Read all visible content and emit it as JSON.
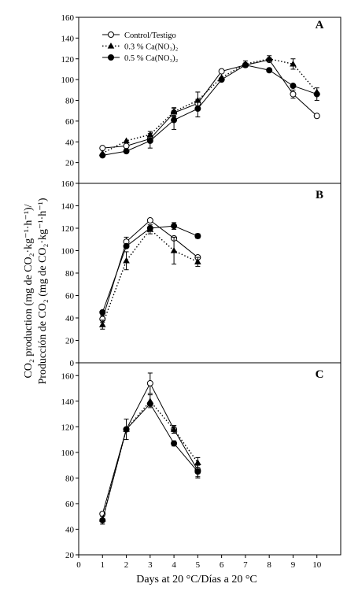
{
  "chart_data": {
    "type": "line",
    "x_axis": {
      "label": "Days at 20 °C/Días a 20 °C",
      "range": [
        0,
        11
      ],
      "ticks": [
        0,
        1,
        2,
        3,
        4,
        5,
        6,
        7,
        8,
        9,
        10
      ]
    },
    "y_axis": {
      "label_line1": "CO₂ production (mg de CO₂·kg⁻¹·h⁻¹)/",
      "label_line2": "Producción de CO₂ (mg de CO₂·kg⁻¹·h⁻¹)"
    },
    "legend": {
      "placement": "top-left of panel A",
      "entries": [
        {
          "label": "Control/Testigo",
          "marker": "open-circle",
          "line": "solid"
        },
        {
          "label": "0.3 % Ca(NO₃)₂",
          "marker": "filled-triangle",
          "line": "dotted"
        },
        {
          "label": "0.5 % Ca(NO₃)₂",
          "marker": "filled-circle",
          "line": "solid"
        }
      ]
    },
    "panels": [
      {
        "tag": "A",
        "ylim": [
          0,
          160
        ],
        "yticks": [
          0,
          20,
          40,
          60,
          80,
          100,
          120,
          140,
          160
        ],
        "show_tick_labels": [
          20,
          40,
          60,
          80,
          100,
          120,
          140,
          160
        ],
        "series": [
          {
            "name": "Control/Testigo",
            "x": [
              1,
              2,
              3,
              4,
              5,
              6,
              7,
              8,
              9,
              10
            ],
            "y": [
              34,
              36,
              43,
              68,
              77,
              108,
              114,
              119,
              86,
              65
            ],
            "err": [
              0,
              0,
              3,
              4,
              4,
              0,
              0,
              0,
              4,
              0
            ]
          },
          {
            "name": "0.3 % Ca(NO₃)₂",
            "x": [
              1,
              2,
              3,
              4,
              5,
              6,
              7,
              8,
              9,
              10
            ],
            "y": [
              29,
              41,
              47,
              69,
              80,
              102,
              115,
              120,
              115,
              88
            ],
            "err": [
              0,
              0,
              3,
              4,
              8,
              0,
              3,
              3,
              5,
              0
            ]
          },
          {
            "name": "0.5 % Ca(NO₃)₂",
            "x": [
              1,
              2,
              3,
              4,
              5,
              6,
              7,
              8,
              9,
              10
            ],
            "y": [
              27,
              31,
              41,
              61,
              72,
              100,
              114,
              109,
              94,
              86
            ],
            "err": [
              0,
              0,
              7,
              9,
              8,
              0,
              0,
              0,
              0,
              6
            ]
          }
        ]
      },
      {
        "tag": "B",
        "ylim": [
          0,
          160
        ],
        "yticks": [
          0,
          20,
          40,
          60,
          80,
          100,
          120,
          140,
          160
        ],
        "show_tick_labels": [
          0,
          20,
          40,
          60,
          80,
          100,
          120,
          140,
          160
        ],
        "series": [
          {
            "name": "Control/Testigo",
            "x": [
              1,
              2,
              3,
              4,
              5
            ],
            "y": [
              39,
              108,
              127,
              111,
              94
            ],
            "err": [
              3,
              4,
              0,
              0,
              0
            ]
          },
          {
            "name": "0.3 % Ca(NO₃)₂",
            "x": [
              1,
              2,
              3,
              4,
              5
            ],
            "y": [
              34,
              91,
              119,
              100,
              90
            ],
            "err": [
              4,
              8,
              4,
              12,
              4
            ]
          },
          {
            "name": "0.5 % Ca(NO₃)₂",
            "x": [
              1,
              2,
              3,
              4,
              5
            ],
            "y": [
              45,
              104,
              120,
              122,
              113
            ],
            "err": [
              0,
              0,
              0,
              3,
              2
            ]
          }
        ]
      },
      {
        "tag": "C",
        "ylim": [
          20,
          170
        ],
        "yticks": [
          20,
          40,
          60,
          80,
          100,
          120,
          140,
          160
        ],
        "show_tick_labels": [
          20,
          40,
          60,
          80,
          100,
          120,
          140,
          160
        ],
        "series": [
          {
            "name": "Control/Testigo",
            "x": [
              1,
              2,
              3,
              4,
              5
            ],
            "y": [
              52,
              118,
              154,
              118,
              86
            ],
            "err": [
              0,
              8,
              8,
              3,
              5
            ]
          },
          {
            "name": "0.3 % Ca(NO₃)₂",
            "x": [
              1,
              2,
              3,
              4,
              5
            ],
            "y": [
              48,
              118,
              140,
              118,
              92
            ],
            "err": [
              0,
              0,
              5,
              3,
              4
            ]
          },
          {
            "name": "0.5 % Ca(NO₃)₂",
            "x": [
              1,
              2,
              3,
              4,
              5
            ],
            "y": [
              47,
              118,
              138,
              107,
              85
            ],
            "err": [
              3,
              0,
              0,
              2,
              5
            ]
          }
        ]
      }
    ]
  }
}
